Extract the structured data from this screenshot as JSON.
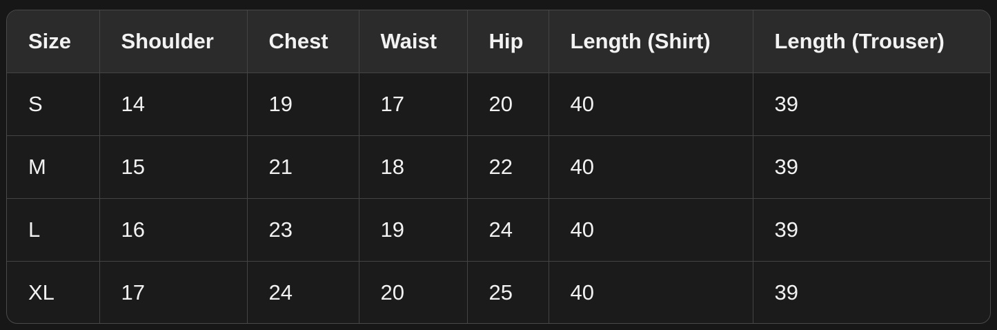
{
  "table": {
    "header": [
      "Size",
      "Shoulder",
      "Chest",
      "Waist",
      "Hip",
      "Length (Shirt)",
      "Length (Trouser)"
    ],
    "rows": [
      [
        "S",
        "14",
        "19",
        "17",
        "20",
        "40",
        "39"
      ],
      [
        "M",
        "15",
        "21",
        "18",
        "22",
        "40",
        "39"
      ],
      [
        "L",
        "16",
        "23",
        "19",
        "24",
        "40",
        "39"
      ],
      [
        "XL",
        "17",
        "24",
        "20",
        "25",
        "40",
        "39"
      ]
    ]
  }
}
